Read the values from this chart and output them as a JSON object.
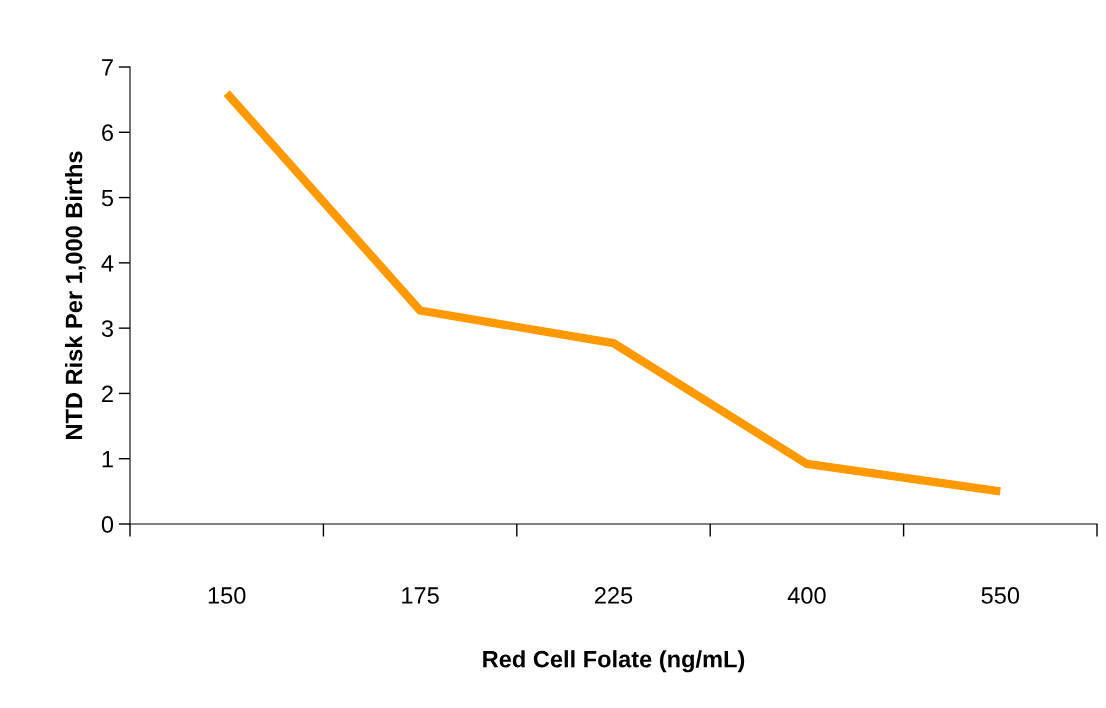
{
  "chart_data": {
    "type": "line",
    "xlabel": "Red Cell Folate (ng/mL)",
    "ylabel": "NTD Risk Per 1,000 Births",
    "categories": [
      "150",
      "175",
      "225",
      "400",
      "550"
    ],
    "series": [
      {
        "color": "#ff9900",
        "values": [
          6.6,
          3.27,
          2.77,
          0.92,
          0.5
        ]
      }
    ],
    "ylim": [
      0,
      7
    ],
    "yticks": [
      0,
      1,
      2,
      3,
      4,
      5,
      6,
      7
    ],
    "grid": false,
    "marker": "none",
    "line_style": "solid"
  }
}
